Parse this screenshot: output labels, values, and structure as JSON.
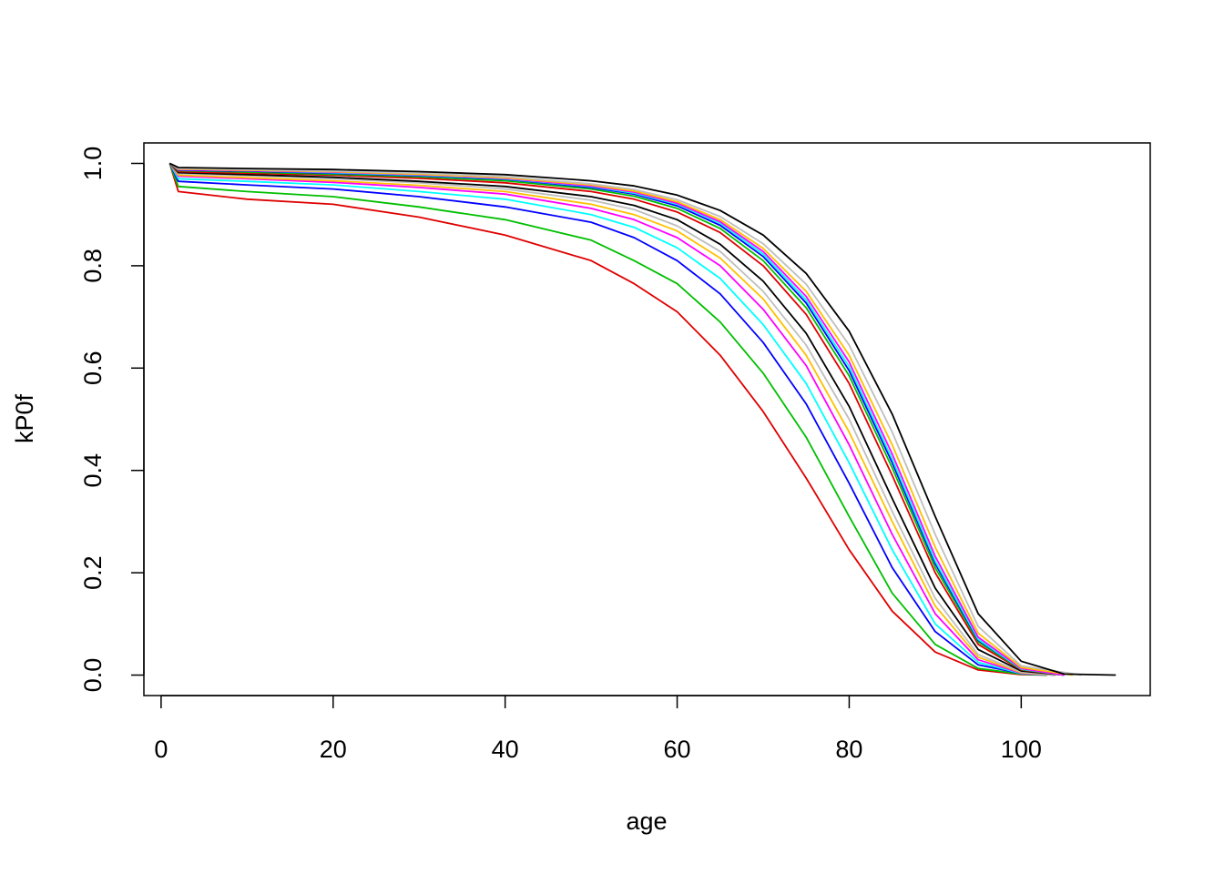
{
  "chart_data": {
    "type": "line",
    "title": "",
    "xlabel": "age",
    "ylabel": "kP0f",
    "xlim": [
      -2,
      115
    ],
    "ylim": [
      -0.04,
      1.04
    ],
    "x_ticks": [
      0,
      20,
      40,
      60,
      80,
      100
    ],
    "y_ticks": [
      0.0,
      0.2,
      0.4,
      0.6,
      0.8,
      1.0
    ],
    "x_tick_labels": [
      "0",
      "20",
      "40",
      "60",
      "80",
      "100"
    ],
    "y_tick_labels": [
      "0.0",
      "0.2",
      "0.4",
      "0.6",
      "0.8",
      "1.0"
    ],
    "grid": false,
    "legend": "none",
    "series": [
      {
        "color": "#DF0000",
        "x": [
          1,
          2,
          10,
          20,
          30,
          40,
          50,
          55,
          60,
          65,
          70,
          75,
          80,
          85,
          90,
          95,
          100,
          103
        ],
        "y": [
          1.0,
          0.945,
          0.93,
          0.92,
          0.895,
          0.86,
          0.81,
          0.765,
          0.71,
          0.625,
          0.515,
          0.385,
          0.245,
          0.125,
          0.045,
          0.01,
          0.001,
          0.0
        ]
      },
      {
        "color": "#00BF00",
        "x": [
          1,
          2,
          10,
          20,
          30,
          40,
          50,
          55,
          60,
          65,
          70,
          75,
          80,
          85,
          90,
          95,
          100,
          103
        ],
        "y": [
          1.0,
          0.955,
          0.945,
          0.935,
          0.915,
          0.89,
          0.85,
          0.81,
          0.765,
          0.69,
          0.59,
          0.465,
          0.31,
          0.16,
          0.06,
          0.013,
          0.002,
          0.0
        ]
      },
      {
        "color": "#0000FF",
        "x": [
          1,
          2,
          10,
          20,
          30,
          40,
          50,
          55,
          60,
          65,
          70,
          75,
          80,
          85,
          90,
          95,
          100,
          104
        ],
        "y": [
          1.0,
          0.965,
          0.958,
          0.95,
          0.935,
          0.915,
          0.885,
          0.855,
          0.81,
          0.745,
          0.65,
          0.53,
          0.375,
          0.21,
          0.085,
          0.02,
          0.003,
          0.0
        ]
      },
      {
        "color": "#00FFFF",
        "x": [
          1,
          2,
          10,
          20,
          30,
          40,
          50,
          55,
          60,
          65,
          70,
          75,
          80,
          85,
          90,
          95,
          100,
          104
        ],
        "y": [
          1.0,
          0.97,
          0.965,
          0.958,
          0.945,
          0.93,
          0.9,
          0.875,
          0.835,
          0.775,
          0.685,
          0.57,
          0.415,
          0.245,
          0.1,
          0.025,
          0.003,
          0.0
        ]
      },
      {
        "color": "#FF00FF",
        "x": [
          1,
          2,
          10,
          20,
          30,
          40,
          50,
          55,
          60,
          65,
          70,
          75,
          80,
          85,
          90,
          95,
          100,
          104
        ],
        "y": [
          1.0,
          0.975,
          0.97,
          0.963,
          0.953,
          0.94,
          0.912,
          0.89,
          0.855,
          0.8,
          0.715,
          0.605,
          0.45,
          0.275,
          0.12,
          0.03,
          0.004,
          0.0
        ]
      },
      {
        "color": "#FFC000",
        "x": [
          1,
          2,
          10,
          20,
          30,
          40,
          50,
          55,
          60,
          65,
          70,
          75,
          80,
          85,
          90,
          95,
          100,
          104
        ],
        "y": [
          1.0,
          0.977,
          0.972,
          0.966,
          0.957,
          0.945,
          0.92,
          0.9,
          0.868,
          0.815,
          0.735,
          0.625,
          0.475,
          0.3,
          0.135,
          0.035,
          0.005,
          0.0
        ]
      },
      {
        "color": "#BEBEBE",
        "x": [
          1,
          2,
          10,
          20,
          30,
          40,
          50,
          55,
          60,
          65,
          70,
          75,
          80,
          85,
          90,
          95,
          100,
          104
        ],
        "y": [
          1.0,
          0.98,
          0.976,
          0.97,
          0.962,
          0.95,
          0.928,
          0.91,
          0.878,
          0.828,
          0.75,
          0.645,
          0.5,
          0.32,
          0.15,
          0.04,
          0.006,
          0.0
        ]
      },
      {
        "color": "#000000",
        "x": [
          1,
          2,
          10,
          20,
          30,
          40,
          50,
          55,
          60,
          65,
          70,
          75,
          80,
          85,
          90,
          95,
          100,
          105
        ],
        "y": [
          1.0,
          0.982,
          0.978,
          0.973,
          0.965,
          0.955,
          0.935,
          0.918,
          0.89,
          0.842,
          0.77,
          0.668,
          0.525,
          0.345,
          0.17,
          0.05,
          0.008,
          0.0
        ]
      },
      {
        "color": "#DF0000",
        "x": [
          1,
          2,
          10,
          20,
          30,
          40,
          50,
          55,
          60,
          65,
          70,
          75,
          80,
          85,
          90,
          95,
          100,
          105
        ],
        "y": [
          1.0,
          0.984,
          0.981,
          0.977,
          0.971,
          0.962,
          0.945,
          0.93,
          0.905,
          0.865,
          0.8,
          0.705,
          0.57,
          0.39,
          0.2,
          0.06,
          0.01,
          0.0
        ]
      },
      {
        "color": "#00BF00",
        "x": [
          1,
          2,
          10,
          20,
          30,
          40,
          50,
          55,
          60,
          65,
          70,
          75,
          80,
          85,
          90,
          95,
          100,
          105
        ],
        "y": [
          1.0,
          0.986,
          0.983,
          0.979,
          0.974,
          0.966,
          0.95,
          0.936,
          0.912,
          0.873,
          0.81,
          0.718,
          0.585,
          0.405,
          0.21,
          0.065,
          0.011,
          0.0
        ]
      },
      {
        "color": "#0000FF",
        "x": [
          1,
          2,
          10,
          20,
          30,
          40,
          50,
          55,
          60,
          65,
          70,
          75,
          80,
          85,
          90,
          95,
          100,
          105
        ],
        "y": [
          1.0,
          0.987,
          0.985,
          0.981,
          0.976,
          0.969,
          0.953,
          0.94,
          0.917,
          0.879,
          0.818,
          0.727,
          0.595,
          0.415,
          0.218,
          0.068,
          0.012,
          0.0
        ]
      },
      {
        "color": "#00FFFF",
        "x": [
          1,
          2,
          10,
          20,
          30,
          40,
          50,
          55,
          60,
          65,
          70,
          75,
          80,
          85,
          90,
          95,
          100,
          105
        ],
        "y": [
          1.0,
          0.988,
          0.986,
          0.982,
          0.977,
          0.97,
          0.955,
          0.942,
          0.92,
          0.883,
          0.823,
          0.733,
          0.603,
          0.422,
          0.223,
          0.07,
          0.012,
          0.0
        ]
      },
      {
        "color": "#FF00FF",
        "x": [
          1,
          2,
          10,
          20,
          30,
          40,
          50,
          55,
          60,
          65,
          70,
          75,
          80,
          85,
          90,
          95,
          100,
          105
        ],
        "y": [
          1.0,
          0.988,
          0.986,
          0.983,
          0.978,
          0.971,
          0.956,
          0.944,
          0.922,
          0.886,
          0.828,
          0.74,
          0.612,
          0.432,
          0.232,
          0.074,
          0.013,
          0.0
        ]
      },
      {
        "color": "#FFC000",
        "x": [
          1,
          2,
          10,
          20,
          30,
          40,
          50,
          55,
          60,
          65,
          70,
          75,
          80,
          85,
          90,
          95,
          100,
          106
        ],
        "y": [
          1.0,
          0.989,
          0.987,
          0.984,
          0.979,
          0.972,
          0.958,
          0.946,
          0.925,
          0.89,
          0.834,
          0.75,
          0.625,
          0.45,
          0.25,
          0.082,
          0.015,
          0.0
        ]
      },
      {
        "color": "#BEBEBE",
        "x": [
          1,
          2,
          10,
          20,
          30,
          40,
          50,
          55,
          60,
          65,
          70,
          75,
          80,
          85,
          90,
          95,
          100,
          107
        ],
        "y": [
          1.0,
          0.99,
          0.988,
          0.985,
          0.981,
          0.974,
          0.96,
          0.949,
          0.929,
          0.896,
          0.843,
          0.764,
          0.645,
          0.475,
          0.275,
          0.095,
          0.018,
          0.0
        ]
      },
      {
        "color": "#000000",
        "x": [
          1,
          2,
          10,
          20,
          30,
          40,
          50,
          55,
          60,
          65,
          70,
          75,
          80,
          85,
          90,
          95,
          100,
          105,
          111
        ],
        "y": [
          1.0,
          0.992,
          0.99,
          0.988,
          0.984,
          0.978,
          0.966,
          0.956,
          0.938,
          0.908,
          0.86,
          0.785,
          0.672,
          0.51,
          0.31,
          0.12,
          0.027,
          0.002,
          0.0
        ]
      }
    ]
  }
}
